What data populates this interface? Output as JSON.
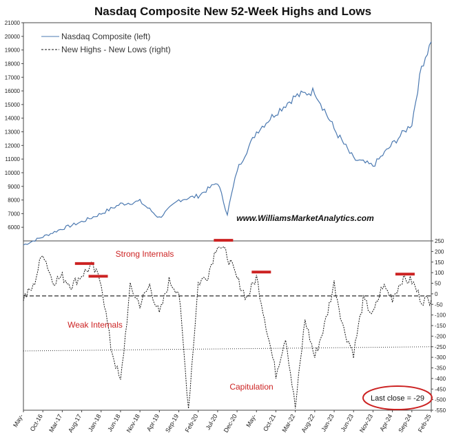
{
  "chart_data": {
    "type": "line",
    "title": "Nasdaq Composite New 52-Week Highs and Lows",
    "legend": {
      "placement": "top-left",
      "entries": [
        "Nasdaq Composite (left)",
        "New Highs - New Lows (right)"
      ]
    },
    "x_tick_labels": [
      "May-",
      "Oct-16",
      "Mar-17",
      "Aug-17",
      "Jan-18",
      "Jun-18",
      "Nov-18",
      "Apr-19",
      "Sep-19",
      "Feb-20",
      "Jul-20",
      "Dec-20",
      "May-",
      "Oct-21",
      "Mar-22",
      "Aug-22",
      "Jan-23",
      "Jun-23",
      "Nov-23",
      "Apr-24",
      "Sep-24",
      "Feb-25"
    ],
    "top_panel": {
      "series_name": "Nasdaq Composite (left)",
      "color": "#4a78b0",
      "ylim": [
        5000,
        21000
      ],
      "y_ticks": [
        6000,
        7000,
        8000,
        9000,
        10000,
        11000,
        12000,
        13000,
        14000,
        15000,
        16000,
        17000,
        18000,
        19000,
        20000,
        21000
      ],
      "x_index": [
        0,
        2,
        4,
        6,
        8,
        10,
        12,
        14,
        16,
        18,
        20,
        21,
        22,
        24,
        26,
        28,
        30,
        32,
        34,
        36,
        38,
        40,
        41,
        42
      ],
      "values": [
        4700,
        5300,
        5900,
        6400,
        7000,
        7700,
        7900,
        6700,
        8000,
        8300,
        9300,
        7000,
        10200,
        13000,
        14400,
        15600,
        16000,
        13200,
        11000,
        10500,
        12100,
        13600,
        17800,
        19600
      ]
    },
    "bottom_panel": {
      "series_name": "New Highs - New Lows (right)",
      "color": "#111111",
      "ylim": [
        -550,
        250
      ],
      "y_ticks": [
        -550,
        -500,
        -450,
        -400,
        -350,
        -300,
        -250,
        -200,
        -150,
        -100,
        -50,
        0,
        50,
        100,
        150,
        200,
        250
      ],
      "x_index": [
        0,
        1,
        2,
        3,
        4,
        5,
        6,
        7,
        8,
        9,
        10,
        11,
        12,
        13,
        14,
        15,
        16,
        17,
        18,
        19,
        20,
        21,
        22,
        23,
        24,
        25,
        26,
        27,
        28,
        29,
        30,
        31,
        32,
        33,
        34,
        35,
        36,
        37,
        38,
        39,
        40,
        41,
        42
      ],
      "values": [
        -20,
        30,
        200,
        60,
        80,
        40,
        90,
        130,
        60,
        -250,
        -420,
        30,
        -50,
        40,
        -100,
        60,
        10,
        -540,
        50,
        90,
        240,
        180,
        70,
        -20,
        80,
        -150,
        -380,
        -200,
        -540,
        -120,
        -300,
        -150,
        50,
        -170,
        -280,
        -30,
        -100,
        40,
        -20,
        70,
        60,
        -30,
        -29
      ]
    },
    "reference_lines": [
      {
        "panel": "bottom",
        "style": "dashed",
        "value": -10
      },
      {
        "panel": "bottom",
        "style": "dotted",
        "from_value": -270,
        "to_value": -250
      }
    ],
    "highlight_bars": [
      {
        "x_index": 6.3,
        "value": 130
      },
      {
        "x_index": 7.7,
        "value": 70
      },
      {
        "x_index": 20.6,
        "value": 240
      },
      {
        "x_index": 24.5,
        "value": 90
      },
      {
        "x_index": 39.3,
        "value": 80
      }
    ],
    "annotations": {
      "strong": "Strong Internals",
      "weak": "Weak Internals",
      "capitulation": "Capitulation",
      "website": "www.WilliamsMarketAnalytics.com",
      "last_close": "Last close = -29"
    },
    "annotation_color": "#cc2222",
    "grid": false
  }
}
